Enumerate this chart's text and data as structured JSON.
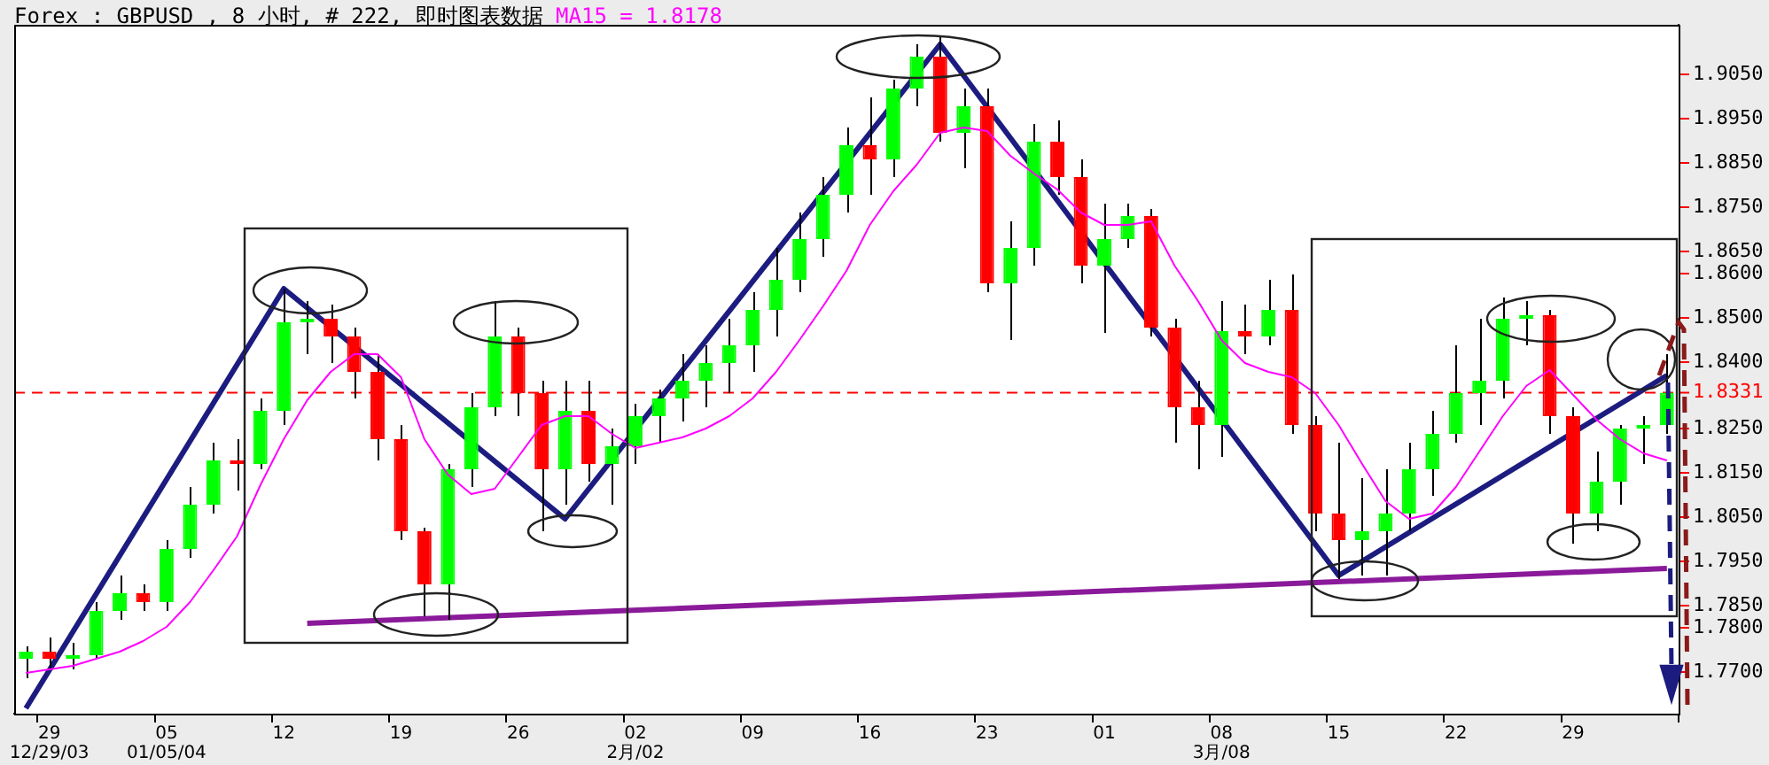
{
  "chart_data": {
    "type": "candlestick",
    "title": "Forex : GBPUSD , 8 小时, # 222, 即时图表数据",
    "annotations": [
      "MA15 = 1.8178"
    ],
    "categories": [
      null,
      "29\n12/29/03",
      null,
      null,
      null,
      null,
      "05\n01/05/04",
      null,
      null,
      null,
      null,
      "12",
      null,
      null,
      null,
      null,
      "19",
      null,
      null,
      null,
      null,
      "26",
      null,
      null,
      null,
      null,
      "02\n2月/02",
      null,
      null,
      null,
      null,
      "09",
      null,
      null,
      null,
      null,
      "16",
      null,
      null,
      null,
      null,
      "23",
      null,
      null,
      null,
      null,
      "01",
      null,
      null,
      null,
      null,
      "08\n3月/08",
      null,
      null,
      null,
      null,
      "15",
      null,
      null,
      null,
      null,
      "22",
      null,
      null,
      null,
      null,
      "29",
      null,
      null,
      null,
      null
    ],
    "ohlc": [
      [
        1.773,
        1.7758,
        1.7686,
        1.7746
      ],
      [
        1.7746,
        1.7778,
        1.7706,
        1.773
      ],
      [
        1.773,
        1.7766,
        1.7706,
        1.7738
      ],
      [
        1.7738,
        1.7858,
        1.773,
        1.7838
      ],
      [
        1.7838,
        1.7918,
        1.7818,
        1.7878
      ],
      [
        1.7878,
        1.7898,
        1.7838,
        1.7858
      ],
      [
        1.7858,
        1.7998,
        1.7838,
        1.7978
      ],
      [
        1.7978,
        1.8118,
        1.7958,
        1.8078
      ],
      [
        1.8078,
        1.8218,
        1.8058,
        1.8178
      ],
      [
        1.8178,
        1.8226,
        1.811,
        1.817
      ],
      [
        1.817,
        1.8318,
        1.8158,
        1.829
      ],
      [
        1.829,
        1.8566,
        1.8258,
        1.849
      ],
      [
        1.849,
        1.8538,
        1.8418,
        1.8498
      ],
      [
        1.8498,
        1.853,
        1.8398,
        1.8458
      ],
      [
        1.8458,
        1.8478,
        1.8318,
        1.8378
      ],
      [
        1.8378,
        1.8418,
        1.8178,
        1.8226
      ],
      [
        1.8226,
        1.8258,
        1.7998,
        1.8018
      ],
      [
        1.8018,
        1.8026,
        1.7826,
        1.7898
      ],
      [
        1.7898,
        1.817,
        1.7818,
        1.8158
      ],
      [
        1.8158,
        1.833,
        1.8118,
        1.8298
      ],
      [
        1.8298,
        1.8538,
        1.8278,
        1.8458
      ],
      [
        1.8458,
        1.8478,
        1.8278,
        1.833
      ],
      [
        1.833,
        1.8358,
        1.8018,
        1.8158
      ],
      [
        1.8158,
        1.8358,
        1.8078,
        1.829
      ],
      [
        1.829,
        1.8358,
        1.813,
        1.817
      ],
      [
        1.817,
        1.825,
        1.8078,
        1.821
      ],
      [
        1.821,
        1.8306,
        1.817,
        1.8278
      ],
      [
        1.8278,
        1.8338,
        1.8218,
        1.8318
      ],
      [
        1.8318,
        1.8418,
        1.8266,
        1.8358
      ],
      [
        1.8358,
        1.8438,
        1.8298,
        1.8398
      ],
      [
        1.8398,
        1.8498,
        1.833,
        1.8438
      ],
      [
        1.8438,
        1.8558,
        1.8378,
        1.8518
      ],
      [
        1.8518,
        1.8658,
        1.8458,
        1.8586
      ],
      [
        1.8586,
        1.8738,
        1.8558,
        1.8678
      ],
      [
        1.8678,
        1.8818,
        1.8638,
        1.8778
      ],
      [
        1.8778,
        1.893,
        1.8738,
        1.889
      ],
      [
        1.889,
        1.8998,
        1.8778,
        1.8858
      ],
      [
        1.8858,
        1.9038,
        1.8818,
        1.9018
      ],
      [
        1.9018,
        1.9118,
        1.8978,
        1.909
      ],
      [
        1.909,
        1.9138,
        1.8898,
        1.8918
      ],
      [
        1.8918,
        1.9018,
        1.8838,
        1.8978
      ],
      [
        1.8978,
        1.9018,
        1.8558,
        1.8578
      ],
      [
        1.8578,
        1.8718,
        1.845,
        1.8658
      ],
      [
        1.8658,
        1.8938,
        1.8618,
        1.8898
      ],
      [
        1.8898,
        1.8946,
        1.8778,
        1.8818
      ],
      [
        1.8818,
        1.8858,
        1.8578,
        1.8618
      ],
      [
        1.8618,
        1.8758,
        1.8466,
        1.8678
      ],
      [
        1.8678,
        1.8758,
        1.8658,
        1.873
      ],
      [
        1.873,
        1.8746,
        1.8458,
        1.8478
      ],
      [
        1.8478,
        1.8498,
        1.8218,
        1.8298
      ],
      [
        1.8298,
        1.8358,
        1.8158,
        1.8258
      ],
      [
        1.8258,
        1.8538,
        1.8186,
        1.847
      ],
      [
        1.847,
        1.853,
        1.8418,
        1.8458
      ],
      [
        1.8458,
        1.8586,
        1.8438,
        1.8518
      ],
      [
        1.8518,
        1.8598,
        1.8238,
        1.8258
      ],
      [
        1.8258,
        1.8278,
        1.8018,
        1.8058
      ],
      [
        1.8058,
        1.8218,
        1.791,
        1.7998
      ],
      [
        1.7998,
        1.8138,
        1.7918,
        1.8018
      ],
      [
        1.8018,
        1.8158,
        1.7918,
        1.8058
      ],
      [
        1.8058,
        1.8218,
        1.8018,
        1.8158
      ],
      [
        1.8158,
        1.829,
        1.8098,
        1.8238
      ],
      [
        1.8238,
        1.8438,
        1.8218,
        1.833
      ],
      [
        1.833,
        1.8498,
        1.8258,
        1.8358
      ],
      [
        1.8358,
        1.8546,
        1.8318,
        1.8498
      ],
      [
        1.8498,
        1.8538,
        1.8438,
        1.8506
      ],
      [
        1.8506,
        1.8518,
        1.8238,
        1.8278
      ],
      [
        1.8278,
        1.8298,
        1.799,
        1.8058
      ],
      [
        1.8058,
        1.8198,
        1.8018,
        1.813
      ],
      [
        1.813,
        1.8258,
        1.8078,
        1.825
      ],
      [
        1.825,
        1.8278,
        1.817,
        1.8258
      ],
      [
        1.8258,
        1.8418,
        1.8238,
        1.8331
      ]
    ],
    "colors": [
      "#00ff00",
      "#ff0000",
      "#00ff00",
      "#00ff00",
      "#00ff00",
      "#ff0000",
      "#00ff00",
      "#00ff00",
      "#00ff00",
      "#ff0000",
      "#00ff00",
      "#00ff00",
      "#00ff00",
      "#ff0000",
      "#ff0000",
      "#ff0000",
      "#ff0000",
      "#ff0000",
      "#00ff00",
      "#00ff00",
      "#00ff00",
      "#ff0000",
      "#ff0000",
      "#00ff00",
      "#ff0000",
      "#00ff00",
      "#00ff00",
      "#00ff00",
      "#00ff00",
      "#00ff00",
      "#00ff00",
      "#00ff00",
      "#00ff00",
      "#00ff00",
      "#00ff00",
      "#00ff00",
      "#ff0000",
      "#00ff00",
      "#00ff00",
      "#ff0000",
      "#00ff00",
      "#ff0000",
      "#00ff00",
      "#00ff00",
      "#ff0000",
      "#ff0000",
      "#00ff00",
      "#00ff00",
      "#ff0000",
      "#ff0000",
      "#ff0000",
      "#00ff00",
      "#ff0000",
      "#00ff00",
      "#ff0000",
      "#ff0000",
      "#ff0000",
      "#00ff00",
      "#00ff00",
      "#00ff00",
      "#00ff00",
      "#00ff00",
      "#00ff00",
      "#00ff00",
      "#00ff00",
      "#ff0000",
      "#ff0000",
      "#00ff00",
      "#00ff00",
      "#00ff00",
      "#00ff00"
    ],
    "series": [
      {
        "type": "line",
        "color": "#ff00ff",
        "values": [
          1.7698,
          1.7706,
          1.7714,
          1.773,
          1.7746,
          1.777,
          1.7802,
          1.7858,
          1.793,
          1.8006,
          1.8122,
          1.8226,
          1.8314,
          1.8378,
          1.8418,
          1.8418,
          1.8366,
          1.8226,
          1.8146,
          1.8102,
          1.8114,
          1.8186,
          1.8258,
          1.8278,
          1.8278,
          1.8238,
          1.8206,
          1.8218,
          1.823,
          1.825,
          1.8278,
          1.8318,
          1.8378,
          1.845,
          1.8526,
          1.8606,
          1.871,
          1.8786,
          1.8846,
          1.8918,
          1.893,
          1.8922,
          1.8866,
          1.8826,
          1.879,
          1.8738,
          1.871,
          1.871,
          1.8718,
          1.8618,
          1.8538,
          1.845,
          1.8398,
          1.8378,
          1.8366,
          1.833,
          1.8258,
          1.817,
          1.8086,
          1.8046,
          1.8058,
          1.8118,
          1.8198,
          1.8278,
          1.8346,
          1.8382,
          1.8326,
          1.827,
          1.8226,
          1.8194,
          1.8178
        ]
      },
      {
        "type": "line",
        "color": "#1c1c80",
        "values": [
          1.7618,
          null,
          null,
          null,
          null,
          null,
          null,
          null,
          null,
          null,
          null,
          1.8566,
          null,
          null,
          null,
          null,
          null,
          null,
          null,
          null,
          null,
          null,
          null,
          1.8046,
          null,
          null,
          null,
          null,
          null,
          null,
          null,
          null,
          null,
          null,
          null,
          null,
          null,
          null,
          null,
          1.9118,
          null,
          null,
          null,
          null,
          null,
          null,
          null,
          null,
          null,
          null,
          null,
          null,
          null,
          null,
          null,
          null,
          1.7918,
          null,
          null,
          null,
          null,
          null,
          null,
          null,
          null,
          null,
          null,
          null,
          null,
          null,
          1.837
        ]
      },
      {
        "type": "line",
        "color": "#8a1a9a",
        "values": [
          null,
          null,
          null,
          null,
          null,
          null,
          null,
          null,
          null,
          null,
          null,
          null,
          1.781,
          null,
          null,
          null,
          null,
          null,
          null,
          null,
          null,
          null,
          null,
          null,
          null,
          null,
          null,
          null,
          null,
          null,
          null,
          null,
          null,
          null,
          null,
          null,
          null,
          null,
          null,
          null,
          null,
          null,
          null,
          null,
          null,
          null,
          null,
          null,
          null,
          null,
          null,
          null,
          null,
          null,
          null,
          null,
          null,
          null,
          null,
          null,
          null,
          null,
          null,
          null,
          null,
          null,
          null,
          null,
          null,
          null,
          1.7934
        ]
      }
    ],
    "ylim": [
      1.7606,
      1.9162
    ],
    "yticks": [
      {
        "value": 1.905,
        "label": "1.9050"
      },
      {
        "value": 1.895,
        "label": "1.8950"
      },
      {
        "value": 1.885,
        "label": "1.8850"
      },
      {
        "value": 1.875,
        "label": "1.8750"
      },
      {
        "value": 1.865,
        "label": "1.8650"
      },
      {
        "value": 1.86,
        "label": "1.8600"
      },
      {
        "value": 1.85,
        "label": "1.8500"
      },
      {
        "value": 1.84,
        "label": "1.8400"
      },
      {
        "value": 1.825,
        "label": "1.8250"
      },
      {
        "value": 1.815,
        "label": "1.8150"
      },
      {
        "value": 1.805,
        "label": "1.8050"
      },
      {
        "value": 1.795,
        "label": "1.7950"
      },
      {
        "value": 1.785,
        "label": "1.7850"
      },
      {
        "value": 1.78,
        "label": "1.7800"
      },
      {
        "value": 1.77,
        "label": "1.7700"
      }
    ],
    "ref_lines": [
      {
        "axis": "y",
        "value": 1.8331,
        "label": "1.8331",
        "color": "#ff0000",
        "line_style": "dashed"
      }
    ],
    "marker": "none"
  }
}
